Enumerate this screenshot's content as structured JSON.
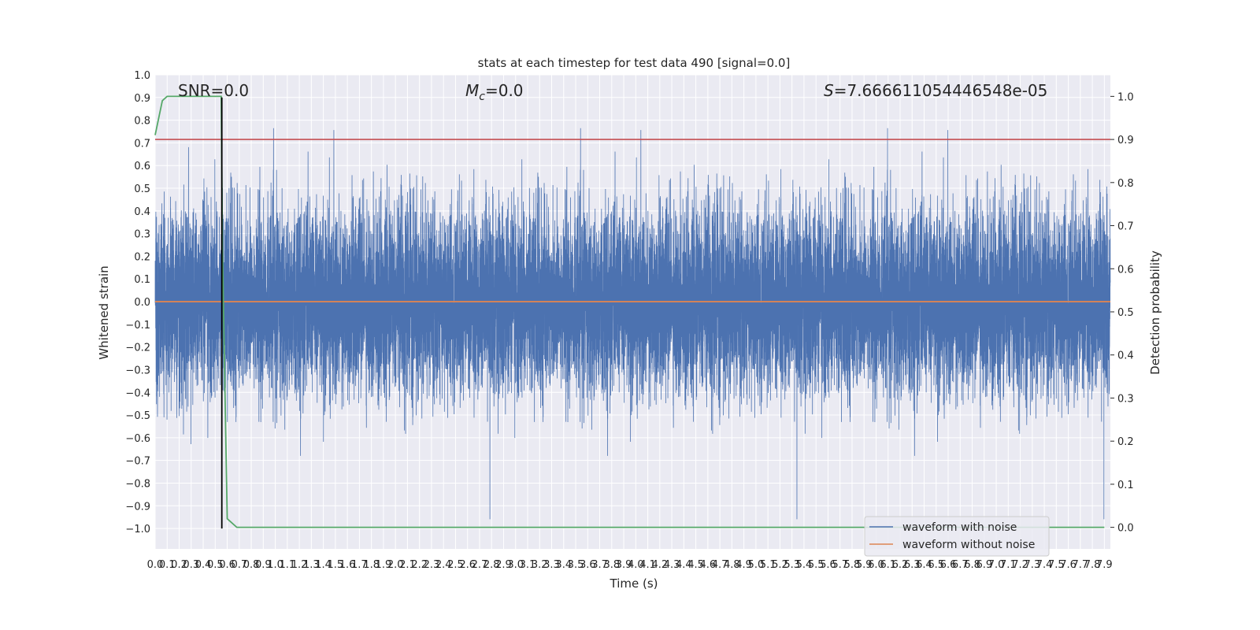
{
  "chart_data": {
    "type": "line",
    "title": "stats at each timestep for test data 490 [signal=0.0]",
    "xlabel": "Time (s)",
    "ylabel_left": "Whitened strain",
    "ylabel_right": "Detection probability",
    "xlim": [
      0,
      7.95
    ],
    "ylim_left": [
      -1.09,
      1.0
    ],
    "ylim_right": [
      -0.05,
      1.05
    ],
    "x_ticks": [
      0.0,
      0.1,
      0.2,
      0.3,
      0.4,
      0.5,
      0.6,
      0.7,
      0.8,
      0.9,
      1.0,
      1.1,
      1.2,
      1.3,
      1.4,
      1.5,
      1.6,
      1.7,
      1.8,
      1.9,
      2.0,
      2.1,
      2.2,
      2.3,
      2.4,
      2.5,
      2.6,
      2.7,
      2.8,
      2.9,
      3.0,
      3.1,
      3.2,
      3.3,
      3.4,
      3.5,
      3.6,
      3.7,
      3.8,
      3.9,
      4.0,
      4.1,
      4.2,
      4.3,
      4.4,
      4.5,
      4.6,
      4.7,
      4.8,
      4.9,
      5.0,
      5.1,
      5.2,
      5.3,
      5.4,
      5.5,
      5.6,
      5.7,
      5.8,
      5.9,
      6.0,
      6.1,
      6.2,
      6.3,
      6.4,
      6.5,
      6.6,
      6.7,
      6.8,
      6.9,
      7.0,
      7.1,
      7.2,
      7.3,
      7.4,
      7.5,
      7.6,
      7.7,
      7.8,
      7.9
    ],
    "x_tick_labels": [
      "0.0",
      "0.1",
      "0.2",
      "0.3",
      "0.4",
      "0.5",
      "0.6",
      "0.7",
      "0.8",
      "0.9",
      "1.0",
      "1.1",
      "1.2",
      "1.3",
      "1.4",
      "1.5",
      "1.6",
      "1.7",
      "1.8",
      "1.9",
      "2.0",
      "2.1",
      "2.2",
      "2.3",
      "2.4",
      "2.5",
      "2.6",
      "2.7",
      "2.8",
      "2.9",
      "3.0",
      "3.1",
      "3.2",
      "3.3",
      "3.4",
      "3.5",
      "3.6",
      "3.7",
      "3.8",
      "3.9",
      "4.0",
      "4.1",
      "4.2",
      "4.3",
      "4.4",
      "4.5",
      "4.6",
      "4.7",
      "4.8",
      "4.9",
      "5.0",
      "5.1",
      "5.2",
      "5.3",
      "5.4",
      "5.5",
      "5.6",
      "5.7",
      "5.8",
      "5.9",
      "6.0",
      "6.1",
      "6.2",
      "6.3",
      "6.4",
      "6.5",
      "6.6",
      "6.7",
      "6.8",
      "6.9",
      "7.0",
      "7.1",
      "7.2",
      "7.3",
      "7.4",
      "7.5",
      "7.6",
      "7.7",
      "7.8",
      "7.9"
    ],
    "y_left_ticks": [
      -1.0,
      -0.9,
      -0.8,
      -0.7,
      -0.6,
      -0.5,
      -0.4,
      -0.3,
      -0.2,
      -0.1,
      0.0,
      0.1,
      0.2,
      0.3,
      0.4,
      0.5,
      0.6,
      0.7,
      0.8,
      0.9,
      1.0
    ],
    "y_left_tick_labels": [
      "−1.0",
      "−0.9",
      "−0.8",
      "−0.7",
      "−0.6",
      "−0.5",
      "−0.4",
      "−0.3",
      "−0.2",
      "−0.1",
      "0.0",
      "0.1",
      "0.2",
      "0.3",
      "0.4",
      "0.5",
      "0.6",
      "0.7",
      "0.8",
      "0.9",
      "1.0"
    ],
    "y_right_ticks": [
      0.0,
      0.1,
      0.2,
      0.3,
      0.4,
      0.5,
      0.6,
      0.7,
      0.8,
      0.9,
      1.0
    ],
    "y_right_tick_labels": [
      "0.0",
      "0.1",
      "0.2",
      "0.3",
      "0.4",
      "0.5",
      "0.6",
      "0.7",
      "0.8",
      "0.9",
      "1.0"
    ],
    "grid": true,
    "series": [
      {
        "name": "waveform with noise",
        "axis": "left",
        "color": "#4c72b0",
        "render": "dense-noise",
        "sample_rate_hz": 2048,
        "sigma": 0.2,
        "clip": [
          -1.0,
          0.9
        ]
      },
      {
        "name": "waveform without noise",
        "axis": "left",
        "color": "#dd8452",
        "x": [
          0.0,
          7.95
        ],
        "y": [
          0.0,
          0.0
        ]
      },
      {
        "axis": "right",
        "color": "#55a868",
        "x": [
          0.0,
          0.06,
          0.1,
          0.55,
          0.56,
          0.6,
          0.68,
          7.9
        ],
        "y": [
          0.91,
          0.99,
          1.0,
          1.0,
          0.65,
          0.02,
          0.0,
          0.0
        ]
      }
    ],
    "threshold": {
      "axis": "right",
      "value": 0.9,
      "color": "#c44e52"
    },
    "vline": {
      "x": 0.555,
      "y_range": [
        -1.0,
        0.9
      ],
      "color": "#000000"
    },
    "annotations": {
      "snr": "SNR=0.0",
      "mc_symbol": "M",
      "mc_sub": "c",
      "mc_value": "=0.0",
      "s_symbol": "S",
      "s_value": "=7.666611054446548e-05"
    },
    "legend": {
      "placement": "lower-right",
      "entries": [
        {
          "label": "waveform with noise",
          "color": "#4c72b0"
        },
        {
          "label": "waveform without noise",
          "color": "#dd8452"
        }
      ]
    },
    "colors": {
      "plot_background": "#eaeaf2",
      "grid": "#ffffff"
    }
  }
}
